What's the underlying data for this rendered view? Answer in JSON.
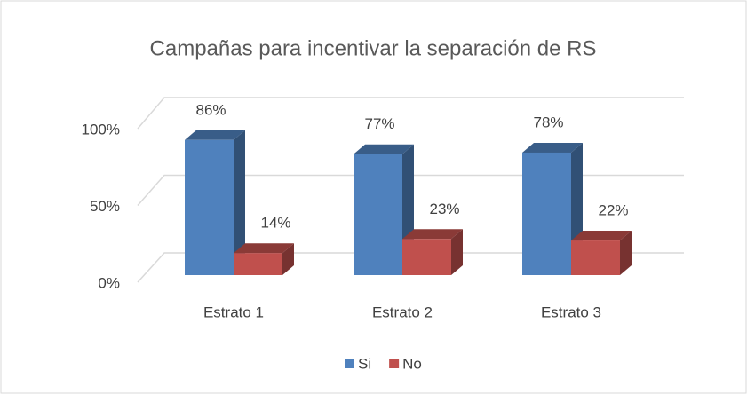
{
  "chart_data": {
    "type": "bar3d",
    "title": "Campañas para incentivar la separación de RS",
    "categories": [
      "Estrato 1",
      "Estrato 2",
      "Estrato 3"
    ],
    "series": [
      {
        "name": "Si",
        "color": "#4f81bd",
        "values": [
          86,
          77,
          78
        ],
        "value_labels": [
          "86%",
          "77%",
          "78%"
        ]
      },
      {
        "name": "No",
        "color": "#c0504d",
        "values": [
          14,
          23,
          22
        ],
        "value_labels": [
          "14%",
          "23%",
          "22%"
        ]
      }
    ],
    "ylim": [
      0,
      100
    ],
    "yticks": [
      {
        "value": 0,
        "label": "0%"
      },
      {
        "value": 50,
        "label": "50%"
      },
      {
        "value": 100,
        "label": "100%"
      }
    ],
    "grid": true,
    "legend": "bottom"
  }
}
